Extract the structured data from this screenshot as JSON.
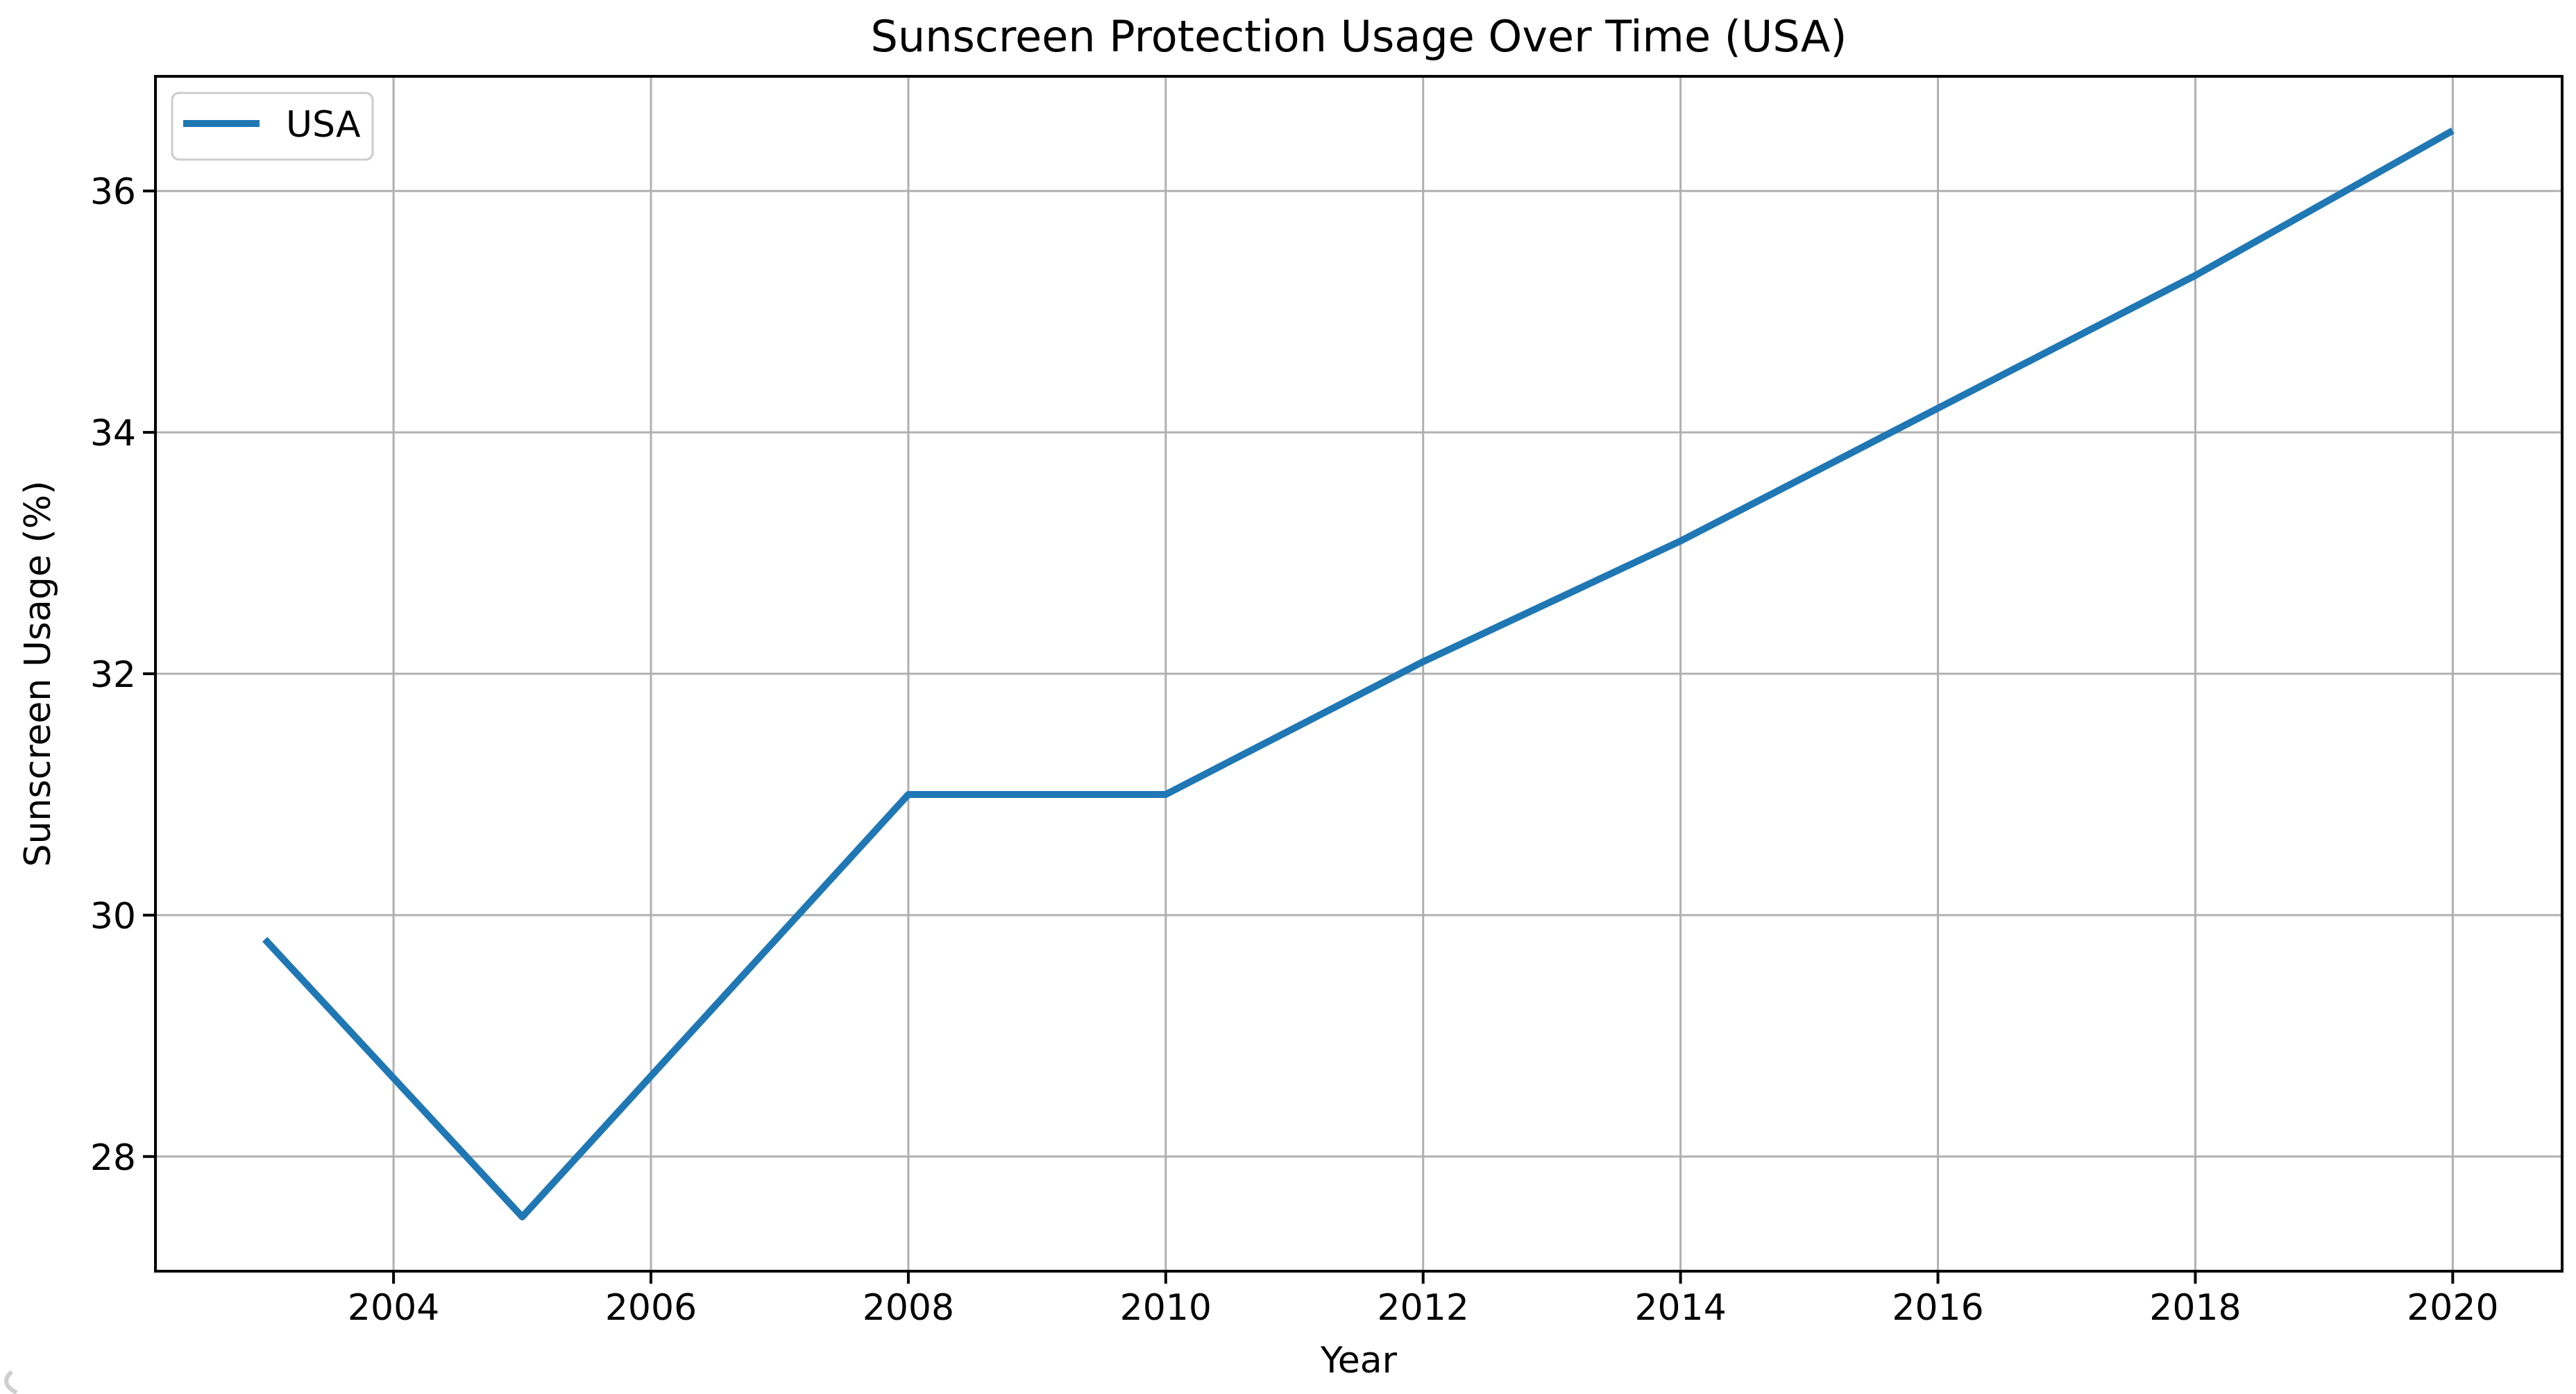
{
  "chart_data": {
    "type": "line",
    "title": "Sunscreen Protection Usage Over Time (USA)",
    "xlabel": "Year",
    "ylabel": "Sunscreen Usage (%)",
    "xlim": [
      2002.15,
      2020.85
    ],
    "ylim": [
      27.05,
      36.95
    ],
    "xticks": [
      2004,
      2006,
      2008,
      2010,
      2012,
      2014,
      2016,
      2018,
      2020
    ],
    "yticks": [
      28,
      30,
      32,
      34,
      36
    ],
    "grid": true,
    "legend": {
      "position": "upper left",
      "entries": [
        "USA"
      ]
    },
    "series": [
      {
        "name": "USA",
        "color": "#1f77b4",
        "x": [
          2003,
          2005,
          2008,
          2010,
          2012,
          2014,
          2016,
          2018,
          2020
        ],
        "y": [
          29.8,
          27.5,
          31.0,
          31.0,
          32.1,
          33.1,
          34.2,
          35.3,
          36.5
        ]
      }
    ]
  },
  "colors": {
    "background": "#ffffff",
    "grid": "#b0b0b0",
    "spine": "#000000",
    "text": "#000000",
    "legend_border": "#cccccc"
  }
}
